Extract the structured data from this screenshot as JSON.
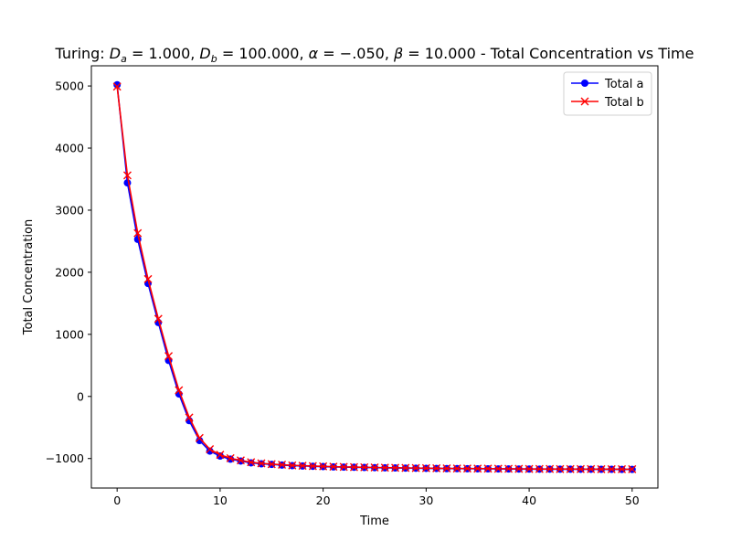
{
  "chart_data": {
    "type": "line",
    "title": "Turing: Dₐ = 1.000, D_b = 100.000, α = −.050, β = 10.000 - Total Concentration vs Time",
    "title_parts": {
      "prefix": "Turing: ",
      "da_sub": "a",
      "da_val": " = 1.000, ",
      "db_sub": "b",
      "db_val": " = 100.000, ",
      "alpha": "α",
      "alpha_val": " = −.050, ",
      "beta": "β",
      "beta_val": " = 10.000",
      "suffix": " - Total Concentration vs Time"
    },
    "xlabel": "Time",
    "ylabel": "Total Concentration",
    "xlim": [
      -2.5,
      52.5
    ],
    "ylim": [
      -1475,
      5325
    ],
    "xticks": [
      0,
      10,
      20,
      30,
      40,
      50
    ],
    "yticks": [
      -1000,
      0,
      1000,
      2000,
      3000,
      4000,
      5000
    ],
    "grid": false,
    "legend": "top-right",
    "x": [
      0,
      1,
      2,
      3,
      4,
      5,
      6,
      7,
      8,
      9,
      10,
      11,
      12,
      13,
      14,
      15,
      16,
      17,
      18,
      19,
      20,
      21,
      22,
      23,
      24,
      25,
      26,
      27,
      28,
      29,
      30,
      31,
      32,
      33,
      34,
      35,
      36,
      37,
      38,
      39,
      40,
      41,
      42,
      43,
      44,
      45,
      46,
      47,
      48,
      49,
      50
    ],
    "series": [
      {
        "name": "Total a",
        "color": "#0000ff",
        "marker": "circle",
        "values": [
          5020,
          3440,
          2530,
          1820,
          1190,
          580,
          40,
          -390,
          -710,
          -880,
          -960,
          -1010,
          -1040,
          -1070,
          -1085,
          -1095,
          -1105,
          -1115,
          -1120,
          -1125,
          -1130,
          -1135,
          -1138,
          -1141,
          -1144,
          -1147,
          -1150,
          -1152,
          -1154,
          -1156,
          -1158,
          -1160,
          -1162,
          -1163,
          -1164,
          -1165,
          -1166,
          -1167,
          -1168,
          -1169,
          -1170,
          -1171,
          -1171,
          -1172,
          -1172,
          -1173,
          -1173,
          -1174,
          -1174,
          -1175,
          -1175
        ]
      },
      {
        "name": "Total b",
        "color": "#ff0000",
        "marker": "x",
        "values": [
          4990,
          3560,
          2630,
          1890,
          1250,
          650,
          100,
          -340,
          -670,
          -850,
          -940,
          -995,
          -1030,
          -1060,
          -1078,
          -1090,
          -1100,
          -1110,
          -1116,
          -1121,
          -1126,
          -1131,
          -1135,
          -1138,
          -1141,
          -1144,
          -1147,
          -1149,
          -1151,
          -1153,
          -1155,
          -1157,
          -1159,
          -1160,
          -1161,
          -1162,
          -1163,
          -1164,
          -1165,
          -1166,
          -1167,
          -1168,
          -1168,
          -1169,
          -1169,
          -1170,
          -1170,
          -1171,
          -1171,
          -1172,
          -1172
        ]
      }
    ]
  }
}
